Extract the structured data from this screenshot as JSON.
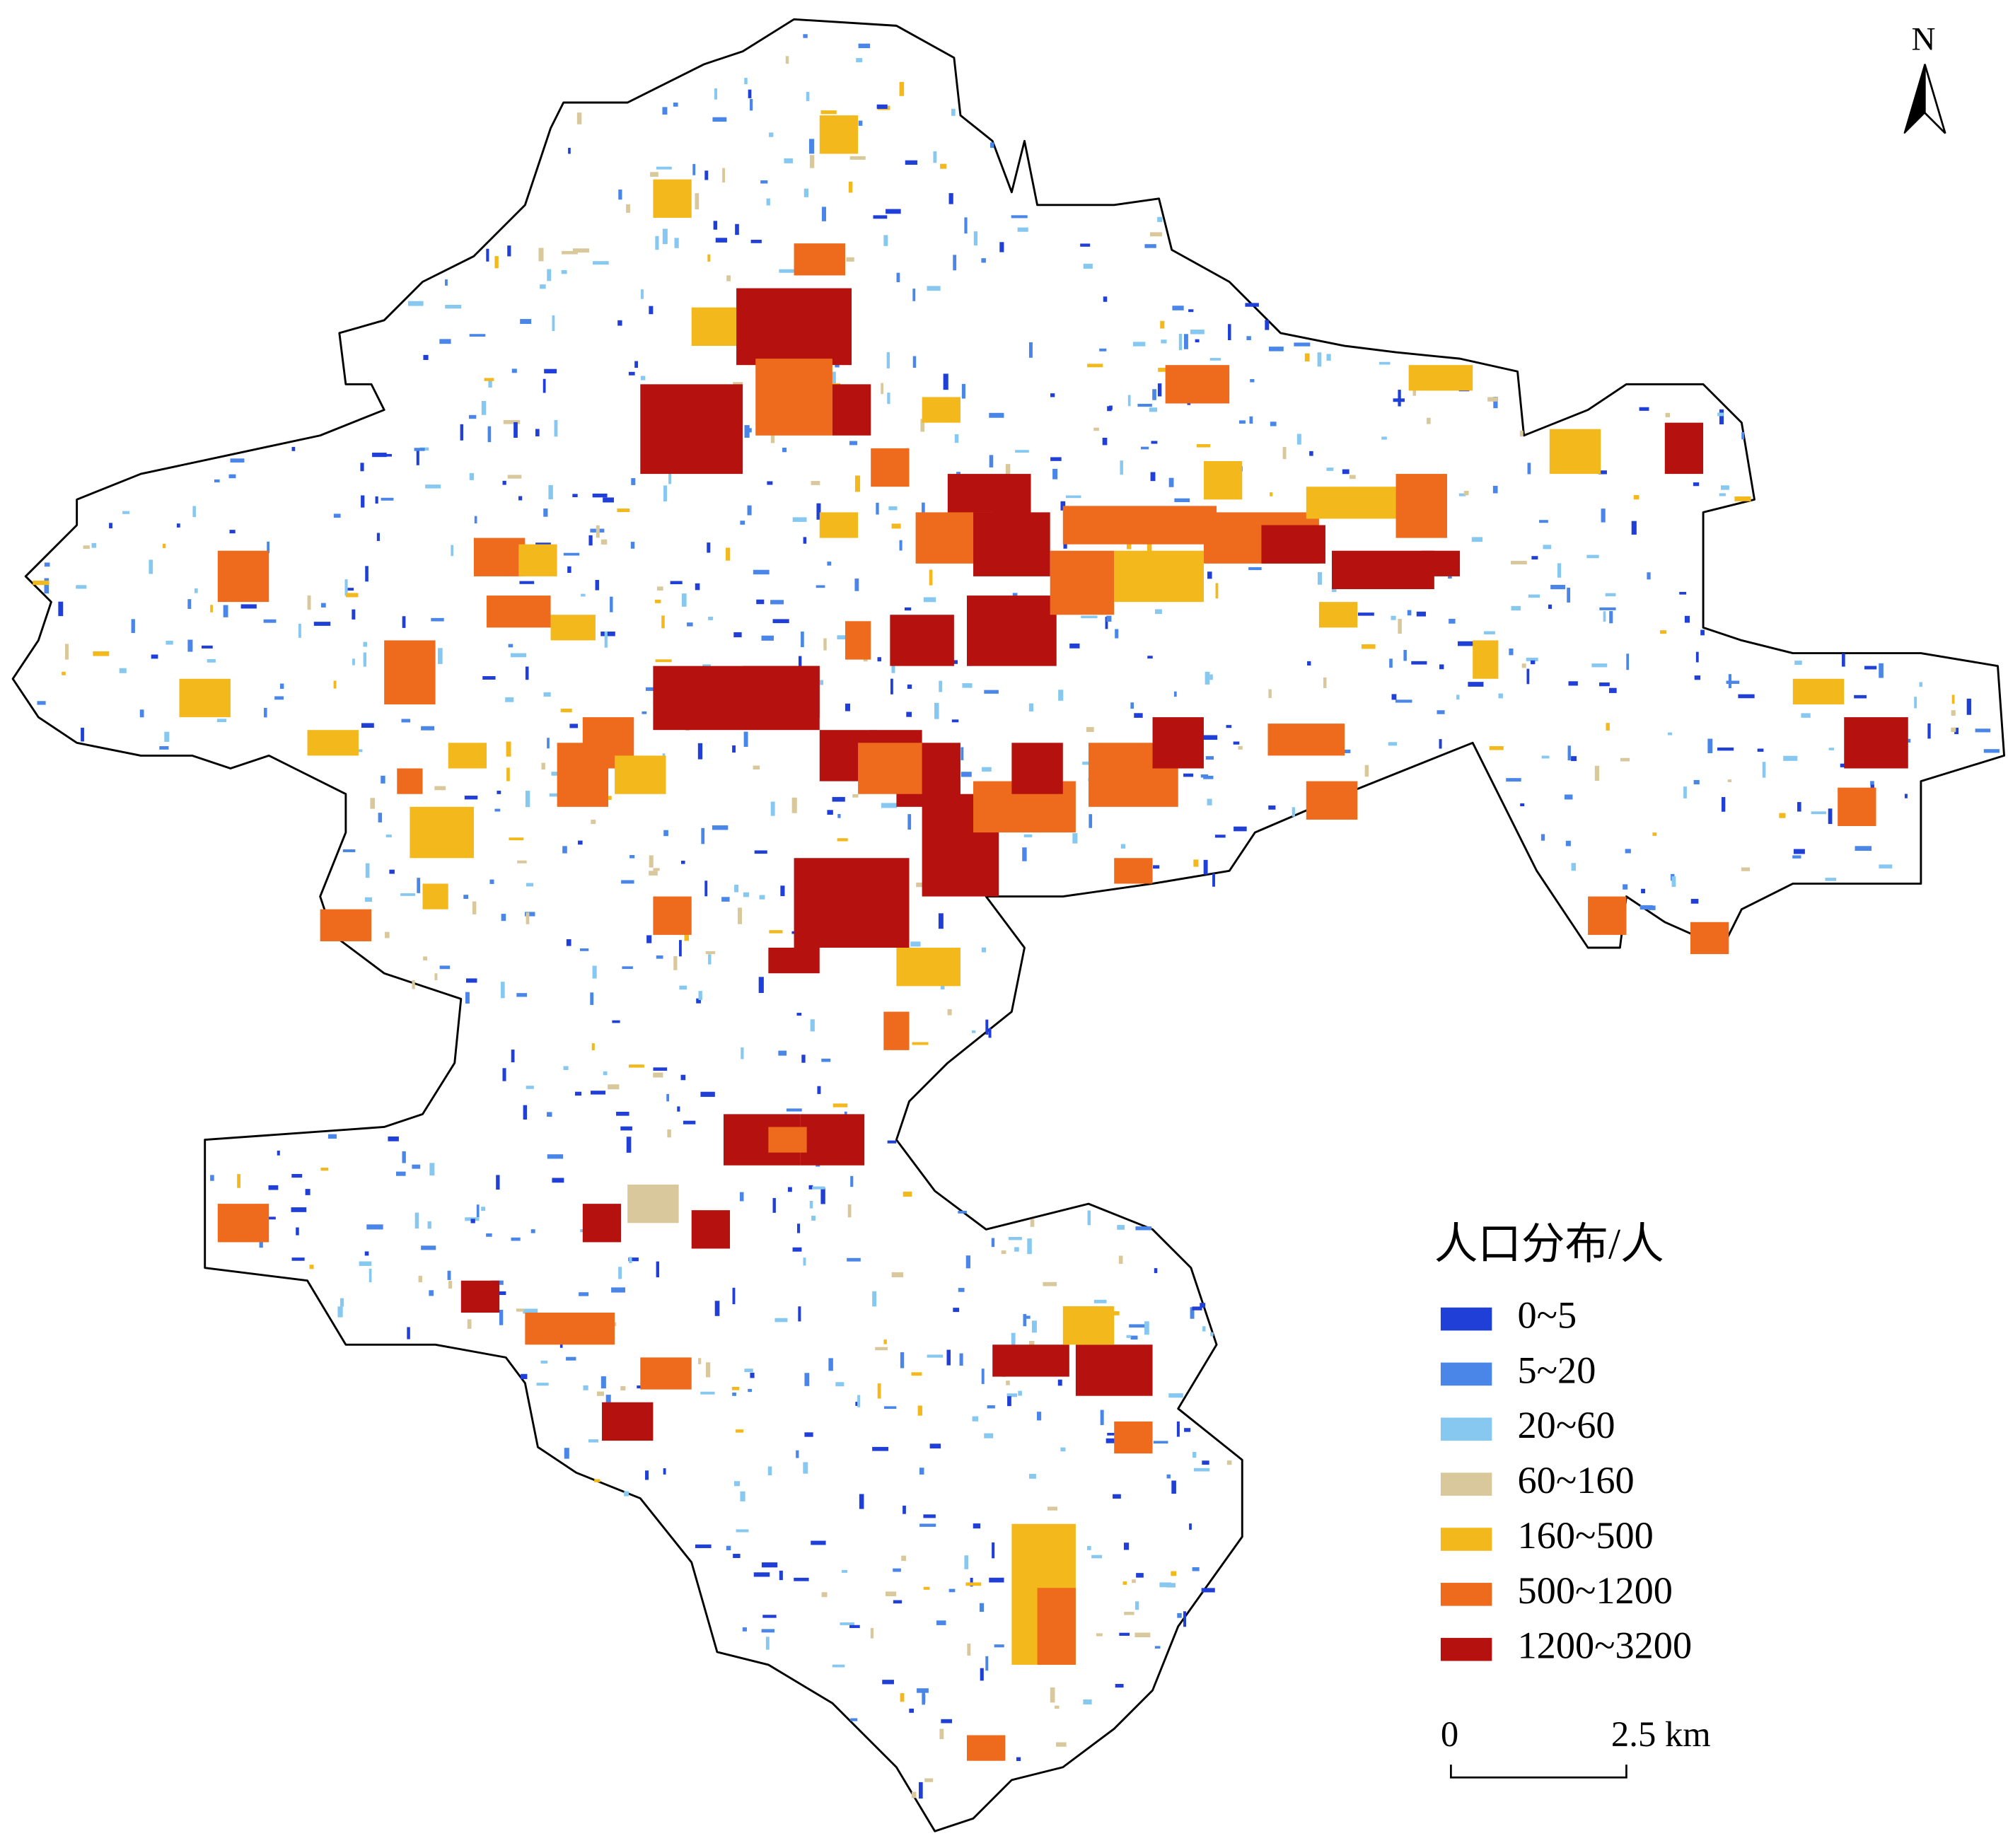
{
  "map": {
    "north_label": "N",
    "legend": {
      "title": "人口分布/人",
      "items": [
        {
          "label": "0~5",
          "color": "#1f3fd6"
        },
        {
          "label": "5~20",
          "color": "#4a86e8"
        },
        {
          "label": "20~60",
          "color": "#86c8f0"
        },
        {
          "label": "60~160",
          "color": "#d9c89c"
        },
        {
          "label": "160~500",
          "color": "#f2b81c"
        },
        {
          "label": "500~1200",
          "color": "#ee6a1c"
        },
        {
          "label": "1200~3200",
          "color": "#b5120f"
        }
      ]
    },
    "scale_bar": {
      "start_label": "0",
      "end_label": "2.5 km"
    }
  }
}
